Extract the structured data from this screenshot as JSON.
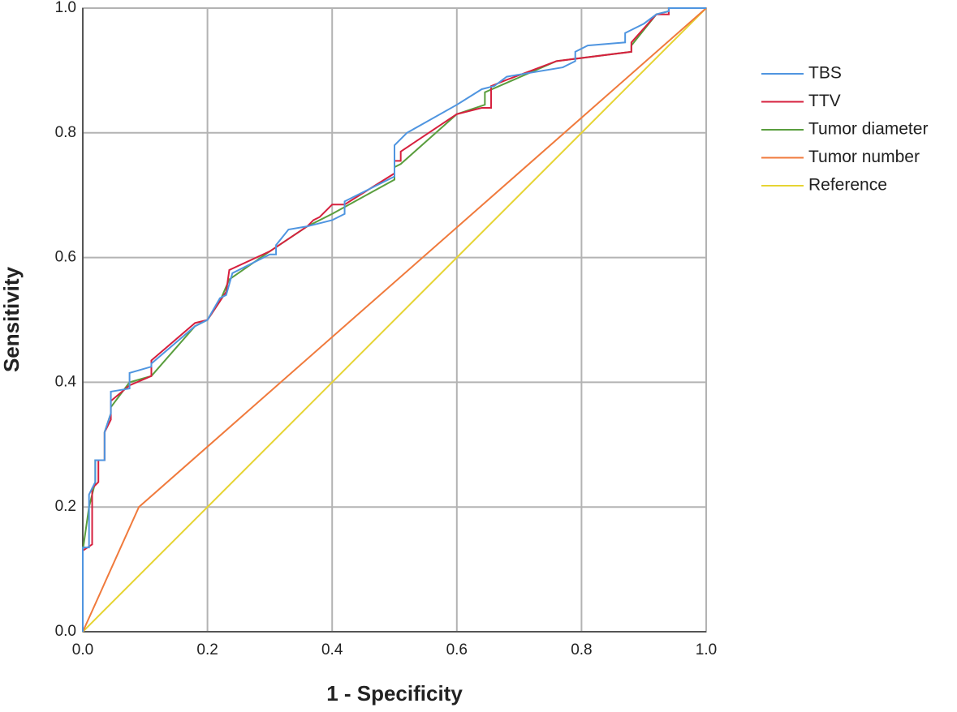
{
  "chart_data": {
    "type": "line",
    "x_label": "1 - Specificity",
    "y_label": "Sensitivity",
    "xlim": [
      0,
      1
    ],
    "ylim": [
      0,
      1
    ],
    "xticks": [
      {
        "value": 0,
        "label": "0.0"
      },
      0.2,
      0.4,
      0.6,
      0.8,
      {
        "value": 1,
        "label": "1.0"
      }
    ],
    "yticks": [
      {
        "value": 0,
        "label": "0.0"
      },
      0.2,
      0.4,
      0.6,
      0.8,
      {
        "value": 1,
        "label": "1.0"
      }
    ],
    "grid": true,
    "legend": "right",
    "series": [
      {
        "name": "TBS",
        "color": "#4f95e0",
        "x": [
          0,
          0,
          0.01,
          0.01,
          0.02,
          0.02,
          0.035,
          0.035,
          0.045,
          0.045,
          0.075,
          0.075,
          0.11,
          0.11,
          0.18,
          0.2,
          0.22,
          0.23,
          0.24,
          0.3,
          0.31,
          0.31,
          0.33,
          0.36,
          0.4,
          0.42,
          0.42,
          0.5,
          0.5,
          0.52,
          0.6,
          0.64,
          0.66,
          0.68,
          0.77,
          0.79,
          0.79,
          0.81,
          0.87,
          0.87,
          0.9,
          0.92,
          0.94,
          0.94,
          1
        ],
        "values": [
          0,
          0.135,
          0.135,
          0.22,
          0.24,
          0.275,
          0.275,
          0.32,
          0.35,
          0.385,
          0.39,
          0.415,
          0.425,
          0.43,
          0.49,
          0.5,
          0.535,
          0.54,
          0.575,
          0.605,
          0.605,
          0.62,
          0.645,
          0.65,
          0.66,
          0.67,
          0.69,
          0.73,
          0.78,
          0.8,
          0.845,
          0.87,
          0.875,
          0.89,
          0.905,
          0.915,
          0.93,
          0.94,
          0.945,
          0.96,
          0.975,
          0.99,
          0.995,
          1,
          1
        ]
      },
      {
        "name": "TTV",
        "color": "#d6203e",
        "x": [
          0,
          0,
          0.015,
          0.015,
          0.025,
          0.025,
          0.035,
          0.035,
          0.045,
          0.045,
          0.075,
          0.11,
          0.11,
          0.18,
          0.2,
          0.22,
          0.23,
          0.235,
          0.3,
          0.36,
          0.37,
          0.38,
          0.4,
          0.42,
          0.5,
          0.5,
          0.51,
          0.51,
          0.6,
          0.64,
          0.655,
          0.655,
          0.68,
          0.76,
          0.88,
          0.88,
          0.92,
          0.94,
          0.94,
          1
        ],
        "values": [
          0,
          0.13,
          0.14,
          0.23,
          0.24,
          0.275,
          0.275,
          0.32,
          0.34,
          0.37,
          0.395,
          0.41,
          0.435,
          0.495,
          0.5,
          0.53,
          0.545,
          0.58,
          0.61,
          0.65,
          0.66,
          0.665,
          0.685,
          0.685,
          0.735,
          0.755,
          0.755,
          0.77,
          0.83,
          0.84,
          0.84,
          0.875,
          0.885,
          0.915,
          0.93,
          0.945,
          0.99,
          0.99,
          1,
          1
        ]
      },
      {
        "name": "Tumor diameter",
        "color": "#5a9e3e",
        "x": [
          0,
          0,
          0.01,
          0.02,
          0.02,
          0.035,
          0.035,
          0.045,
          0.045,
          0.075,
          0.11,
          0.18,
          0.2,
          0.22,
          0.235,
          0.3,
          0.36,
          0.37,
          0.4,
          0.5,
          0.5,
          0.51,
          0.6,
          0.645,
          0.645,
          0.76,
          0.88,
          0.88,
          0.92,
          0.94,
          0.94,
          1
        ],
        "values": [
          0,
          0.13,
          0.2,
          0.24,
          0.275,
          0.275,
          0.32,
          0.35,
          0.36,
          0.4,
          0.41,
          0.49,
          0.5,
          0.53,
          0.565,
          0.61,
          0.65,
          0.655,
          0.67,
          0.725,
          0.745,
          0.75,
          0.83,
          0.845,
          0.865,
          0.915,
          0.93,
          0.94,
          0.99,
          0.995,
          1,
          1
        ]
      },
      {
        "name": "Tumor number",
        "color": "#f07a3c",
        "x": [
          0,
          0.09,
          1
        ],
        "values": [
          0,
          0.2,
          1
        ]
      },
      {
        "name": "Reference",
        "color": "#e6d433",
        "x": [
          0,
          1
        ],
        "values": [
          0,
          1
        ]
      }
    ]
  }
}
